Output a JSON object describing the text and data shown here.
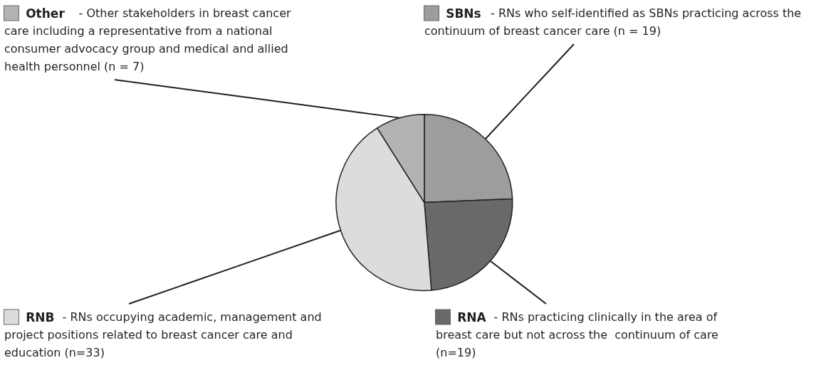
{
  "chart_data": {
    "type": "pie",
    "categories": [
      "SBNs - RNs who self-identified as SBNs practicing across the continuum of breast cancer care (n = 19)",
      "RNA - RNs practicing clinically in the area of breast care but not across the  continuum of care (n=19)",
      "RNB - RNs occupying academic, management and project positions related to breast cancer care and education (n=33)",
      "Other - Other stakeholders in breast cancer care including a representative from a national consumer advocacy group and medical and allied health personnel (n = 7)"
    ],
    "values": [
      19,
      19,
      33,
      7
    ],
    "colors": [
      "#9d9d9f",
      "#69686a",
      "#dcdcdd",
      "#b3b3b5"
    ],
    "legend": "top left"
  }
}
